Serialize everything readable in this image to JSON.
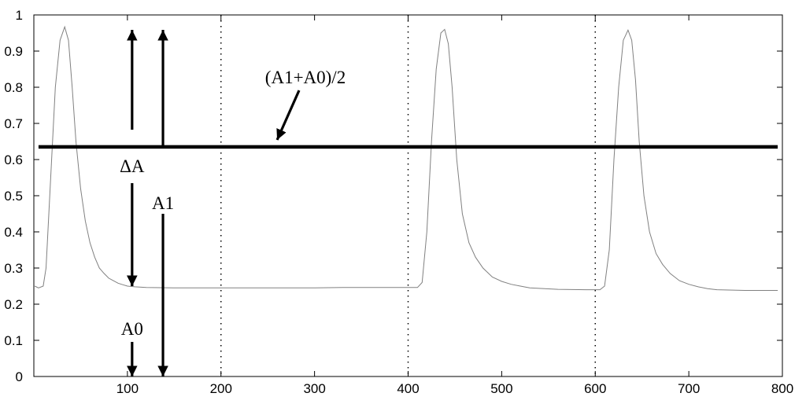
{
  "chart_data": {
    "type": "line",
    "xlim": [
      0,
      800
    ],
    "ylim": [
      0,
      1
    ],
    "xticks": [
      100,
      200,
      300,
      400,
      500,
      600,
      700,
      800
    ],
    "yticks": [
      0,
      0.1,
      0.2,
      0.3,
      0.4,
      0.5,
      0.6,
      0.7,
      0.8,
      0.9,
      1
    ],
    "xtick_labels": [
      "100",
      "200",
      "300",
      "400",
      "500",
      "600",
      "700",
      "800"
    ],
    "ytick_labels": [
      "0",
      "0.1",
      "0.2",
      "0.3",
      "0.4",
      "0.5",
      "0.6",
      "0.7",
      "0.8",
      "0.9",
      "1"
    ],
    "grid": false,
    "series": [
      {
        "color": "#808080",
        "x": [
          1,
          5,
          10,
          13,
          18,
          23,
          28,
          33,
          37,
          41,
          45,
          50,
          55,
          60,
          65,
          70,
          75,
          80,
          85,
          90,
          95,
          100,
          108,
          120,
          150,
          180,
          210,
          240,
          270,
          300,
          330,
          360,
          390,
          410,
          415,
          420,
          425,
          430,
          435,
          439,
          443,
          447,
          452,
          458,
          465,
          472,
          480,
          490,
          500,
          510,
          520,
          530,
          560,
          590,
          605,
          610,
          615,
          620,
          625,
          630,
          635,
          639,
          643,
          647,
          652,
          658,
          665,
          672,
          680,
          690,
          700,
          710,
          720,
          730,
          760,
          795
        ],
        "y": [
          0.25,
          0.245,
          0.25,
          0.3,
          0.55,
          0.8,
          0.93,
          0.967,
          0.93,
          0.8,
          0.65,
          0.52,
          0.43,
          0.37,
          0.33,
          0.3,
          0.285,
          0.272,
          0.265,
          0.258,
          0.254,
          0.25,
          0.248,
          0.246,
          0.245,
          0.245,
          0.245,
          0.245,
          0.245,
          0.245,
          0.246,
          0.246,
          0.246,
          0.246,
          0.26,
          0.4,
          0.65,
          0.85,
          0.95,
          0.96,
          0.92,
          0.8,
          0.6,
          0.45,
          0.37,
          0.33,
          0.3,
          0.275,
          0.263,
          0.255,
          0.25,
          0.245,
          0.241,
          0.24,
          0.24,
          0.25,
          0.35,
          0.6,
          0.8,
          0.93,
          0.958,
          0.93,
          0.82,
          0.65,
          0.5,
          0.4,
          0.34,
          0.31,
          0.285,
          0.265,
          0.255,
          0.248,
          0.243,
          0.24,
          0.238,
          0.238
        ]
      }
    ],
    "threshold": {
      "y": 0.635,
      "label": "(A1+A0)/2"
    },
    "vlines": [
      200,
      400,
      600
    ],
    "annotations": {
      "delta_a": "ΔA",
      "a1": "A1",
      "a0": "A0"
    }
  }
}
